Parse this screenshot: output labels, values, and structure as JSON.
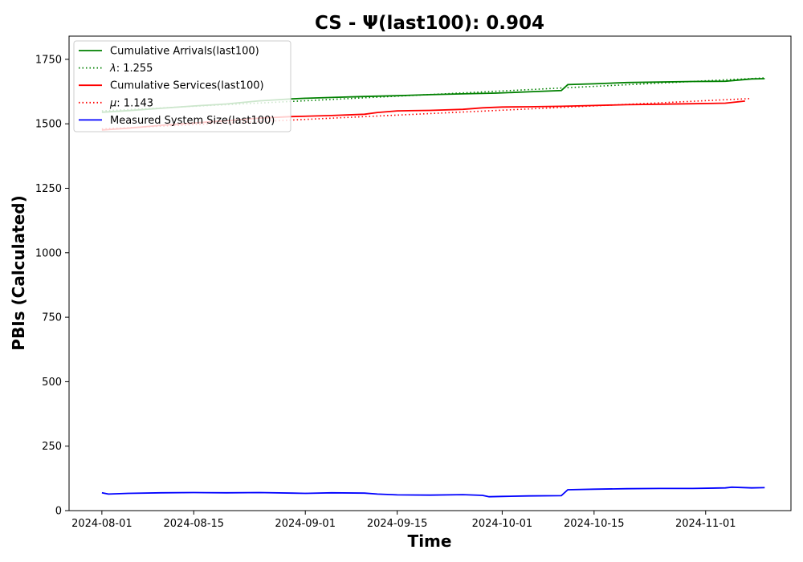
{
  "chart_data": {
    "type": "line",
    "title": "CS -  Ψ(last100): 0.904",
    "xlabel": "Time",
    "ylabel": "PBIs (Calculated)",
    "x_ticks": [
      "2024-08-01",
      "2024-08-15",
      "2024-09-01",
      "2024-09-15",
      "2024-10-01",
      "2024-10-15",
      "2024-11-01"
    ],
    "y_ticks": [
      "0",
      "250",
      "500",
      "750",
      "1000",
      "1250",
      "1500",
      "1750"
    ],
    "ylim": [
      0,
      1840
    ],
    "xlim": [
      "2024-07-27",
      "2024-11-14"
    ],
    "grid": false,
    "legend_position": "top-left",
    "legend": [
      {
        "label": "Cumulative Arrivals(last100)",
        "color": "#008000",
        "style": "solid"
      },
      {
        "label": "λ: 1.255",
        "label_symbol": "λ",
        "label_value": ": 1.255",
        "color": "#008000",
        "style": "dotted"
      },
      {
        "label": "Cumulative Services(last100)",
        "color": "#ff0000",
        "style": "solid"
      },
      {
        "label": "μ: 1.143",
        "label_symbol": "μ",
        "label_value": ": 1.143",
        "color": "#ff0000",
        "style": "dotted"
      },
      {
        "label": "Measured System Size(last100)",
        "color": "#0000ff",
        "style": "solid"
      }
    ],
    "series": [
      {
        "name": "Cumulative Arrivals(last100)",
        "color": "#008000",
        "style": "solid",
        "points": [
          [
            "2024-08-01",
            1545
          ],
          [
            "2024-08-05",
            1551
          ],
          [
            "2024-08-10",
            1560
          ],
          [
            "2024-08-15",
            1569
          ],
          [
            "2024-08-20",
            1577
          ],
          [
            "2024-08-25",
            1589
          ],
          [
            "2024-08-30",
            1597
          ],
          [
            "2024-09-01",
            1599
          ],
          [
            "2024-09-05",
            1602
          ],
          [
            "2024-09-10",
            1606
          ],
          [
            "2024-09-15",
            1609
          ],
          [
            "2024-09-20",
            1613
          ],
          [
            "2024-09-25",
            1616
          ],
          [
            "2024-09-30",
            1619
          ],
          [
            "2024-10-05",
            1624
          ],
          [
            "2024-10-10",
            1629
          ],
          [
            "2024-10-11",
            1652
          ],
          [
            "2024-10-15",
            1655
          ],
          [
            "2024-10-20",
            1660
          ],
          [
            "2024-10-25",
            1662
          ],
          [
            "2024-10-30",
            1664
          ],
          [
            "2024-11-04",
            1665
          ],
          [
            "2024-11-08",
            1674
          ],
          [
            "2024-11-10",
            1675
          ]
        ]
      },
      {
        "name": "λ: 1.255",
        "color": "#008000",
        "style": "dotted",
        "points": [
          [
            "2024-08-01",
            1550
          ],
          [
            "2024-11-10",
            1678
          ]
        ]
      },
      {
        "name": "Cumulative Services(last100)",
        "color": "#ff0000",
        "style": "solid",
        "points": [
          [
            "2024-08-01",
            1476
          ],
          [
            "2024-08-05",
            1483
          ],
          [
            "2024-08-10",
            1494
          ],
          [
            "2024-08-15",
            1503
          ],
          [
            "2024-08-20",
            1512
          ],
          [
            "2024-08-25",
            1522
          ],
          [
            "2024-08-30",
            1528
          ],
          [
            "2024-09-05",
            1532
          ],
          [
            "2024-09-10",
            1537
          ],
          [
            "2024-09-12",
            1544
          ],
          [
            "2024-09-15",
            1550
          ],
          [
            "2024-09-20",
            1552
          ],
          [
            "2024-09-25",
            1556
          ],
          [
            "2024-09-28",
            1562
          ],
          [
            "2024-10-01",
            1565
          ],
          [
            "2024-10-05",
            1566
          ],
          [
            "2024-10-10",
            1568
          ],
          [
            "2024-10-15",
            1571
          ],
          [
            "2024-10-20",
            1574
          ],
          [
            "2024-10-25",
            1576
          ],
          [
            "2024-10-30",
            1578
          ],
          [
            "2024-11-04",
            1580
          ],
          [
            "2024-11-07",
            1588
          ]
        ]
      },
      {
        "name": "μ: 1.143",
        "color": "#ff0000",
        "style": "dotted",
        "points": [
          [
            "2024-08-01",
            1480
          ],
          [
            "2024-11-08",
            1598
          ]
        ]
      },
      {
        "name": "Measured System Size(last100)",
        "color": "#0000ff",
        "style": "solid",
        "points": [
          [
            "2024-08-01",
            69
          ],
          [
            "2024-08-02",
            64
          ],
          [
            "2024-08-05",
            67
          ],
          [
            "2024-08-10",
            69
          ],
          [
            "2024-08-15",
            70
          ],
          [
            "2024-08-20",
            69
          ],
          [
            "2024-08-25",
            70
          ],
          [
            "2024-08-30",
            68
          ],
          [
            "2024-09-01",
            67
          ],
          [
            "2024-09-05",
            69
          ],
          [
            "2024-09-10",
            68
          ],
          [
            "2024-09-12",
            64
          ],
          [
            "2024-09-15",
            61
          ],
          [
            "2024-09-20",
            60
          ],
          [
            "2024-09-25",
            62
          ],
          [
            "2024-09-28",
            59
          ],
          [
            "2024-09-29",
            54
          ],
          [
            "2024-10-01",
            55
          ],
          [
            "2024-10-05",
            57
          ],
          [
            "2024-10-10",
            58
          ],
          [
            "2024-10-11",
            81
          ],
          [
            "2024-10-15",
            83
          ],
          [
            "2024-10-20",
            85
          ],
          [
            "2024-10-25",
            86
          ],
          [
            "2024-10-30",
            86
          ],
          [
            "2024-11-04",
            88
          ],
          [
            "2024-11-05",
            91
          ],
          [
            "2024-11-08",
            88
          ],
          [
            "2024-11-10",
            89
          ]
        ]
      }
    ]
  }
}
